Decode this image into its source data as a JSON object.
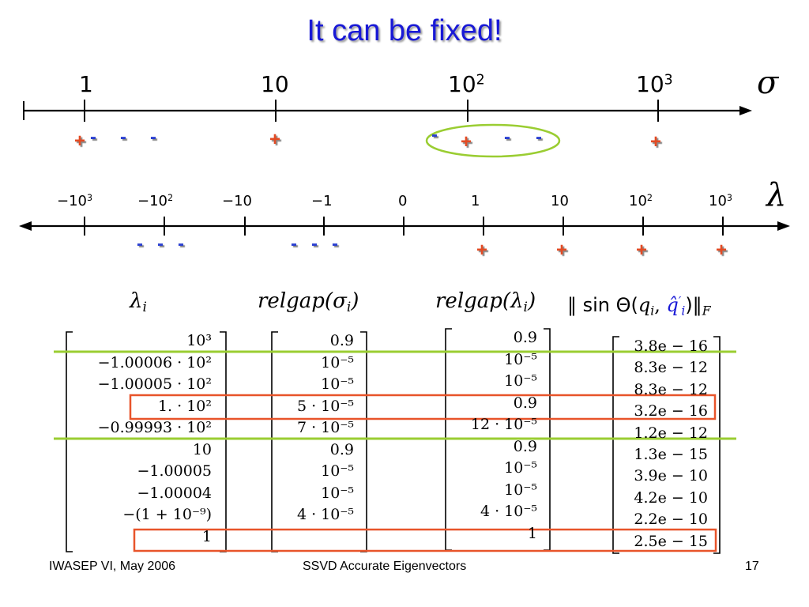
{
  "slide": {
    "title": "It can be fixed!",
    "footer": {
      "left": "IWASEP VI, May 2006",
      "center": "SSVD Accurate Eigenvectors",
      "page": "17"
    },
    "colors": {
      "title": "#1919d6",
      "plus": "#e34b24",
      "minus": "#2a3fd1",
      "green": "#9acd32",
      "red": "#e8542a"
    }
  },
  "sigma_axis": {
    "symbol": "σ",
    "ticks": [
      {
        "base": "1",
        "exp": ""
      },
      {
        "base": "10",
        "exp": ""
      },
      {
        "base": "10",
        "exp": "2"
      },
      {
        "base": "10",
        "exp": "3"
      }
    ],
    "signs": [
      "+",
      "-",
      "-",
      "-",
      "+",
      "-",
      "+",
      "-",
      "-",
      "+"
    ]
  },
  "lambda_axis": {
    "symbol": "λ",
    "ticks": [
      {
        "base": "−10",
        "exp": "3"
      },
      {
        "base": "−10",
        "exp": "2"
      },
      {
        "base": "−10",
        "exp": ""
      },
      {
        "base": "−1",
        "exp": ""
      },
      {
        "base": "0",
        "exp": ""
      },
      {
        "base": "1",
        "exp": ""
      },
      {
        "base": "10",
        "exp": ""
      },
      {
        "base": "10",
        "exp": "2"
      },
      {
        "base": "10",
        "exp": "3"
      }
    ],
    "signs": [
      "-",
      "-",
      "-",
      "-",
      "-",
      "-",
      "+",
      "+",
      "+",
      "+"
    ]
  },
  "table": {
    "headers": {
      "lambda": {
        "sym": "λ",
        "sub": "i"
      },
      "relgap_sigma": {
        "fn": "relgap(",
        "sym": "σ",
        "sub": "i",
        "close": ")"
      },
      "relgap_lambda": {
        "fn": "relgap(",
        "sym": "λ",
        "sub": "i",
        "close": ")"
      },
      "sin_theta": {
        "pre": "‖ sin Θ(",
        "q": "q",
        "sub": "i",
        "sep": ", ",
        "qhat": "q̂",
        "qhat_sup": "′",
        "qhat_sub": "i",
        "close": ")‖",
        "norm": "F"
      }
    },
    "rows": [
      {
        "lambda": "10³",
        "relgap_sigma": "0.9",
        "relgap_lambda": "0.9",
        "sin_theta": "3.8e − 16"
      },
      {
        "lambda": "−1.00006 · 10²",
        "relgap_sigma": "10⁻⁵",
        "relgap_lambda": "10⁻⁵",
        "sin_theta": "8.3e − 12"
      },
      {
        "lambda": "−1.00005 · 10²",
        "relgap_sigma": "10⁻⁵",
        "relgap_lambda": "10⁻⁵",
        "sin_theta": "8.3e − 12"
      },
      {
        "lambda": "1. · 10²",
        "relgap_sigma": "5 · 10⁻⁵",
        "relgap_lambda": "0.9",
        "sin_theta": "3.2e − 16"
      },
      {
        "lambda": "−0.99993 · 10²",
        "relgap_sigma": "7 · 10⁻⁵",
        "relgap_lambda": "12 · 10⁻⁵",
        "sin_theta": "1.2e − 12"
      },
      {
        "lambda": "10",
        "relgap_sigma": "0.9",
        "relgap_lambda": "0.9",
        "sin_theta": "1.3e − 15"
      },
      {
        "lambda": "−1.00005",
        "relgap_sigma": "10⁻⁵",
        "relgap_lambda": "10⁻⁵",
        "sin_theta": "3.9e − 10"
      },
      {
        "lambda": "−1.00004",
        "relgap_sigma": "10⁻⁵",
        "relgap_lambda": "10⁻⁵",
        "sin_theta": "4.2e − 10"
      },
      {
        "lambda": "−(1 + 10⁻⁹)",
        "relgap_sigma": "4 · 10⁻⁵",
        "relgap_lambda": "4 · 10⁻⁵",
        "sin_theta": "2.2e − 10"
      },
      {
        "lambda": "1",
        "relgap_sigma": "",
        "relgap_lambda": "1",
        "sin_theta": "2.5e − 15"
      }
    ]
  }
}
